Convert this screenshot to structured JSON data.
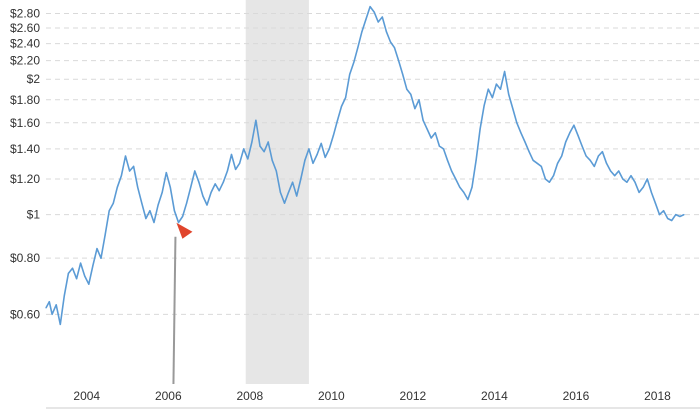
{
  "chart_data": {
    "type": "line",
    "title": "",
    "xlabel": "",
    "ylabel": "",
    "x_scale": "time",
    "y_scale": "log",
    "xlim": [
      2003.0,
      2018.7
    ],
    "ylim": [
      0.42,
      3.0
    ],
    "grid": true,
    "y_ticks": [
      {
        "value": 0.6,
        "label": "$0.60"
      },
      {
        "value": 0.8,
        "label": "$0.80"
      },
      {
        "value": 1.0,
        "label": "$1"
      },
      {
        "value": 1.2,
        "label": "$1.20"
      },
      {
        "value": 1.4,
        "label": "$1.40"
      },
      {
        "value": 1.6,
        "label": "$1.60"
      },
      {
        "value": 1.8,
        "label": "$1.80"
      },
      {
        "value": 2.0,
        "label": "$2"
      },
      {
        "value": 2.2,
        "label": "$2.20"
      },
      {
        "value": 2.4,
        "label": "$2.40"
      },
      {
        "value": 2.6,
        "label": "$2.60"
      },
      {
        "value": 2.8,
        "label": "$2.80"
      }
    ],
    "x_ticks": [
      {
        "value": 2004,
        "label": "2004"
      },
      {
        "value": 2006,
        "label": "2006"
      },
      {
        "value": 2008,
        "label": "2008"
      },
      {
        "value": 2010,
        "label": "2010"
      },
      {
        "value": 2012,
        "label": "2012"
      },
      {
        "value": 2014,
        "label": "2014"
      },
      {
        "value": 2016,
        "label": "2016"
      },
      {
        "value": 2018,
        "label": "2018"
      }
    ],
    "recession_band": {
      "start": 2007.9,
      "end": 2009.45,
      "color": "#e6e6e6"
    },
    "marker": {
      "x": 2006.2,
      "y": 0.93,
      "color": "#e0452c",
      "line_color": "#999999"
    },
    "series": [
      {
        "color": "#5b9bd5",
        "points": [
          [
            2003.0,
            0.62
          ],
          [
            2003.08,
            0.64
          ],
          [
            2003.15,
            0.6
          ],
          [
            2003.25,
            0.63
          ],
          [
            2003.35,
            0.57
          ],
          [
            2003.45,
            0.66
          ],
          [
            2003.55,
            0.74
          ],
          [
            2003.65,
            0.76
          ],
          [
            2003.75,
            0.72
          ],
          [
            2003.85,
            0.78
          ],
          [
            2003.95,
            0.73
          ],
          [
            2004.05,
            0.7
          ],
          [
            2004.15,
            0.77
          ],
          [
            2004.25,
            0.84
          ],
          [
            2004.35,
            0.8
          ],
          [
            2004.45,
            0.9
          ],
          [
            2004.55,
            1.02
          ],
          [
            2004.65,
            1.06
          ],
          [
            2004.75,
            1.15
          ],
          [
            2004.85,
            1.22
          ],
          [
            2004.95,
            1.35
          ],
          [
            2005.05,
            1.25
          ],
          [
            2005.15,
            1.28
          ],
          [
            2005.25,
            1.15
          ],
          [
            2005.35,
            1.06
          ],
          [
            2005.45,
            0.98
          ],
          [
            2005.55,
            1.02
          ],
          [
            2005.65,
            0.96
          ],
          [
            2005.75,
            1.05
          ],
          [
            2005.85,
            1.12
          ],
          [
            2005.95,
            1.24
          ],
          [
            2006.05,
            1.15
          ],
          [
            2006.15,
            1.02
          ],
          [
            2006.25,
            0.96
          ],
          [
            2006.35,
            0.99
          ],
          [
            2006.45,
            1.06
          ],
          [
            2006.55,
            1.15
          ],
          [
            2006.65,
            1.25
          ],
          [
            2006.75,
            1.18
          ],
          [
            2006.85,
            1.1
          ],
          [
            2006.95,
            1.05
          ],
          [
            2007.05,
            1.12
          ],
          [
            2007.15,
            1.17
          ],
          [
            2007.25,
            1.13
          ],
          [
            2007.35,
            1.18
          ],
          [
            2007.45,
            1.25
          ],
          [
            2007.55,
            1.36
          ],
          [
            2007.65,
            1.26
          ],
          [
            2007.75,
            1.3
          ],
          [
            2007.85,
            1.4
          ],
          [
            2007.95,
            1.33
          ],
          [
            2008.05,
            1.45
          ],
          [
            2008.15,
            1.62
          ],
          [
            2008.25,
            1.42
          ],
          [
            2008.35,
            1.38
          ],
          [
            2008.45,
            1.45
          ],
          [
            2008.55,
            1.32
          ],
          [
            2008.65,
            1.25
          ],
          [
            2008.75,
            1.12
          ],
          [
            2008.85,
            1.06
          ],
          [
            2008.95,
            1.12
          ],
          [
            2009.05,
            1.18
          ],
          [
            2009.15,
            1.1
          ],
          [
            2009.25,
            1.2
          ],
          [
            2009.35,
            1.32
          ],
          [
            2009.45,
            1.4
          ],
          [
            2009.55,
            1.3
          ],
          [
            2009.65,
            1.36
          ],
          [
            2009.75,
            1.44
          ],
          [
            2009.85,
            1.34
          ],
          [
            2009.95,
            1.4
          ],
          [
            2010.05,
            1.5
          ],
          [
            2010.15,
            1.62
          ],
          [
            2010.25,
            1.74
          ],
          [
            2010.35,
            1.82
          ],
          [
            2010.45,
            2.05
          ],
          [
            2010.55,
            2.18
          ],
          [
            2010.65,
            2.35
          ],
          [
            2010.75,
            2.55
          ],
          [
            2010.85,
            2.72
          ],
          [
            2010.95,
            2.9
          ],
          [
            2011.05,
            2.82
          ],
          [
            2011.15,
            2.68
          ],
          [
            2011.25,
            2.75
          ],
          [
            2011.35,
            2.55
          ],
          [
            2011.45,
            2.42
          ],
          [
            2011.55,
            2.35
          ],
          [
            2011.65,
            2.2
          ],
          [
            2011.75,
            2.05
          ],
          [
            2011.85,
            1.9
          ],
          [
            2011.95,
            1.85
          ],
          [
            2012.05,
            1.72
          ],
          [
            2012.15,
            1.8
          ],
          [
            2012.25,
            1.62
          ],
          [
            2012.35,
            1.55
          ],
          [
            2012.45,
            1.48
          ],
          [
            2012.55,
            1.52
          ],
          [
            2012.65,
            1.42
          ],
          [
            2012.75,
            1.4
          ],
          [
            2012.85,
            1.32
          ],
          [
            2012.95,
            1.25
          ],
          [
            2013.05,
            1.2
          ],
          [
            2013.15,
            1.15
          ],
          [
            2013.25,
            1.12
          ],
          [
            2013.35,
            1.08
          ],
          [
            2013.45,
            1.15
          ],
          [
            2013.55,
            1.32
          ],
          [
            2013.65,
            1.55
          ],
          [
            2013.75,
            1.75
          ],
          [
            2013.85,
            1.9
          ],
          [
            2013.95,
            1.82
          ],
          [
            2014.05,
            1.95
          ],
          [
            2014.15,
            1.9
          ],
          [
            2014.25,
            2.08
          ],
          [
            2014.35,
            1.85
          ],
          [
            2014.45,
            1.72
          ],
          [
            2014.55,
            1.6
          ],
          [
            2014.65,
            1.52
          ],
          [
            2014.75,
            1.45
          ],
          [
            2014.85,
            1.38
          ],
          [
            2014.95,
            1.32
          ],
          [
            2015.05,
            1.3
          ],
          [
            2015.15,
            1.28
          ],
          [
            2015.25,
            1.2
          ],
          [
            2015.35,
            1.18
          ],
          [
            2015.45,
            1.22
          ],
          [
            2015.55,
            1.3
          ],
          [
            2015.65,
            1.35
          ],
          [
            2015.75,
            1.45
          ],
          [
            2015.85,
            1.52
          ],
          [
            2015.95,
            1.58
          ],
          [
            2016.05,
            1.5
          ],
          [
            2016.15,
            1.42
          ],
          [
            2016.25,
            1.35
          ],
          [
            2016.35,
            1.32
          ],
          [
            2016.45,
            1.28
          ],
          [
            2016.55,
            1.35
          ],
          [
            2016.65,
            1.38
          ],
          [
            2016.75,
            1.3
          ],
          [
            2016.85,
            1.25
          ],
          [
            2016.95,
            1.22
          ],
          [
            2017.05,
            1.25
          ],
          [
            2017.15,
            1.2
          ],
          [
            2017.25,
            1.18
          ],
          [
            2017.35,
            1.22
          ],
          [
            2017.45,
            1.18
          ],
          [
            2017.55,
            1.12
          ],
          [
            2017.65,
            1.15
          ],
          [
            2017.75,
            1.2
          ],
          [
            2017.85,
            1.12
          ],
          [
            2017.95,
            1.06
          ],
          [
            2018.05,
            1.0
          ],
          [
            2018.15,
            1.02
          ],
          [
            2018.25,
            0.98
          ],
          [
            2018.35,
            0.97
          ],
          [
            2018.45,
            1.0
          ],
          [
            2018.55,
            0.99
          ],
          [
            2018.65,
            1.0
          ]
        ]
      }
    ]
  }
}
